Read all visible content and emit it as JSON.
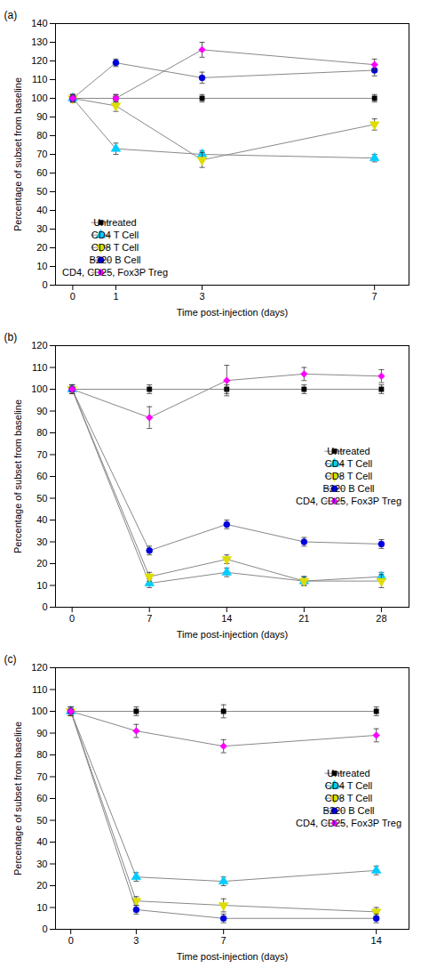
{
  "chart_data": [
    {
      "type": "line",
      "title": "(a)",
      "xlabel": "Time post-injection (days)",
      "ylabel": "Percentage of subset from baseline",
      "xlim": [
        -0.4,
        7.8
      ],
      "ylim": [
        0,
        140
      ],
      "xticks": [
        0,
        1,
        3,
        7
      ],
      "yticks": [
        0,
        10,
        20,
        30,
        40,
        50,
        60,
        70,
        80,
        90,
        100,
        110,
        120,
        130,
        140
      ],
      "color": "#888888",
      "legend": "lower left",
      "x": [
        0,
        1,
        3,
        7
      ],
      "series": [
        {
          "name": "Untreated",
          "color": "#000000",
          "marker": "square",
          "values": [
            100,
            100,
            100,
            100
          ],
          "yerr": [
            2,
            2,
            2,
            2
          ]
        },
        {
          "name": "CD4 T Cell",
          "color": "#00ccff",
          "marker": "triangle_up",
          "values": [
            100,
            73,
            70,
            68
          ],
          "yerr": [
            2,
            3,
            2,
            2
          ]
        },
        {
          "name": "CD8 T Cell",
          "color": "#dddd00",
          "marker": "triangle_down",
          "values": [
            100,
            96,
            67,
            86
          ],
          "yerr": [
            2,
            3,
            4,
            3
          ]
        },
        {
          "name": "B220 B Cell",
          "color": "#0000dd",
          "marker": "circle",
          "values": [
            100,
            119,
            111,
            115
          ],
          "yerr": [
            2,
            2,
            3,
            3
          ]
        },
        {
          "name": "CD4, CD25, Fox3P Treg",
          "color": "#ff00ff",
          "marker": "diamond",
          "values": [
            100,
            100,
            126,
            118
          ],
          "yerr": [
            2,
            2,
            4,
            3
          ]
        }
      ]
    },
    {
      "type": "line",
      "title": "(b)",
      "xlabel": "Time post-injection (days)",
      "ylabel": "Percentage of subset from baseline",
      "xlim": [
        -1.5,
        30.5
      ],
      "ylim": [
        0,
        120
      ],
      "xticks": [
        0,
        7,
        14,
        21,
        28
      ],
      "yticks": [
        0,
        10,
        20,
        30,
        40,
        50,
        60,
        70,
        80,
        90,
        100,
        110,
        120
      ],
      "color": "#888888",
      "legend": "center right",
      "x": [
        0,
        7,
        14,
        21,
        28
      ],
      "series": [
        {
          "name": "Untreated",
          "color": "#000000",
          "marker": "square",
          "values": [
            100,
            100,
            100,
            100,
            100
          ],
          "yerr": [
            2,
            2,
            2,
            2,
            2
          ]
        },
        {
          "name": "CD4 T Cell",
          "color": "#00ccff",
          "marker": "triangle_up",
          "values": [
            100,
            11,
            16,
            12,
            14
          ],
          "yerr": [
            2,
            2,
            2,
            2,
            2
          ]
        },
        {
          "name": "CD8 T Cell",
          "color": "#dddd00",
          "marker": "triangle_down",
          "values": [
            100,
            14,
            22,
            12,
            12
          ],
          "yerr": [
            2,
            2,
            2,
            2,
            3
          ]
        },
        {
          "name": "B220 B Cell",
          "color": "#0000dd",
          "marker": "circle",
          "values": [
            100,
            26,
            38,
            30,
            29
          ],
          "yerr": [
            2,
            2,
            2,
            2,
            2
          ]
        },
        {
          "name": "CD4, CD25, Fox3P Treg",
          "color": "#ff00ff",
          "marker": "diamond",
          "values": [
            100,
            87,
            104,
            107,
            106
          ],
          "yerr": [
            2,
            5,
            7,
            3,
            3
          ]
        }
      ]
    },
    {
      "type": "line",
      "title": "(c)",
      "xlabel": "Time post-injection (days)",
      "ylabel": "Percentage of subset from baseline",
      "xlim": [
        -0.7,
        15.5
      ],
      "ylim": [
        0,
        120
      ],
      "xticks": [
        0,
        3,
        7,
        14
      ],
      "yticks": [
        0,
        10,
        20,
        30,
        40,
        50,
        60,
        70,
        80,
        90,
        100,
        110,
        120
      ],
      "color": "#888888",
      "legend": "center right",
      "x": [
        0,
        3,
        7,
        14
      ],
      "series": [
        {
          "name": "Untreated",
          "color": "#000000",
          "marker": "square",
          "values": [
            100,
            100,
            100,
            100
          ],
          "yerr": [
            2,
            2,
            3,
            2
          ]
        },
        {
          "name": "CD4 T Cell",
          "color": "#00ccff",
          "marker": "triangle_up",
          "values": [
            100,
            24,
            22,
            27
          ],
          "yerr": [
            2,
            2,
            2,
            2
          ]
        },
        {
          "name": "CD8 T Cell",
          "color": "#dddd00",
          "marker": "triangle_down",
          "values": [
            100,
            13,
            11,
            8
          ],
          "yerr": [
            2,
            2,
            3,
            2
          ]
        },
        {
          "name": "B220 B Cell",
          "color": "#0000dd",
          "marker": "circle",
          "values": [
            100,
            9,
            5,
            5
          ],
          "yerr": [
            2,
            2,
            2,
            2
          ]
        },
        {
          "name": "CD4, CD25, Fox3P Treg",
          "color": "#ff00ff",
          "marker": "diamond",
          "values": [
            100,
            91,
            84,
            89
          ],
          "yerr": [
            2,
            3,
            3,
            3
          ]
        }
      ]
    }
  ]
}
